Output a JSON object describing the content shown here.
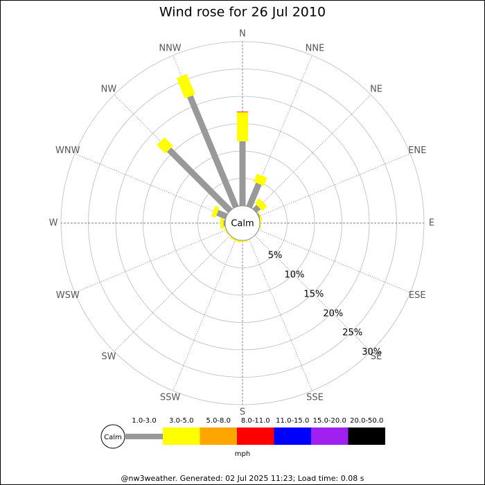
{
  "chart_data": {
    "type": "wind_rose",
    "title": "Wind rose for 26 Jul 2010",
    "directions": [
      "N",
      "NNE",
      "NE",
      "ENE",
      "E",
      "ESE",
      "SE",
      "SSE",
      "S",
      "SSW",
      "SW",
      "WSW",
      "W",
      "WNW",
      "NW",
      "NNW"
    ],
    "series": [
      {
        "name": "1.0-3.0",
        "color": "#999999",
        "values": [
          11.8,
          4.6,
          1.0,
          0.2,
          0,
          0,
          0,
          0,
          0,
          0,
          0,
          0,
          0.3,
          1.8,
          15.8,
          21.9
        ]
      },
      {
        "name": "3.0-5.0",
        "color": "#ffff00",
        "values": [
          5.3,
          1.6,
          1.2,
          0.2,
          0.2,
          0,
          0,
          0,
          0.2,
          0.3,
          0,
          0.2,
          0.6,
          0.8,
          2.2,
          4.0
        ]
      },
      {
        "name": "5.0-8.0",
        "color": "#ffa500",
        "values": [
          0,
          0,
          0,
          0,
          0,
          0,
          0,
          0,
          0,
          0,
          0,
          0,
          0,
          0,
          0,
          0
        ]
      },
      {
        "name": "8.0-11.0",
        "color": "#ff0000",
        "values": [
          0.1,
          0,
          0,
          0,
          0,
          0,
          0,
          0,
          0,
          0,
          0,
          0,
          0,
          0,
          0,
          0
        ]
      },
      {
        "name": "11.0-15.0",
        "color": "#0000ff",
        "values": [
          0,
          0,
          0,
          0,
          0,
          0,
          0,
          0,
          0,
          0,
          0,
          0,
          0,
          0,
          0,
          0
        ]
      },
      {
        "name": "15.0-20.0",
        "color": "#a020f0",
        "values": [
          0,
          0,
          0,
          0,
          0,
          0,
          0,
          0,
          0,
          0,
          0,
          0,
          0,
          0,
          0,
          0
        ]
      },
      {
        "name": "20.0-50.0",
        "color": "#000000",
        "values": [
          0,
          0,
          0,
          0,
          0,
          0,
          0,
          0,
          0,
          0,
          0,
          0,
          0,
          0,
          0,
          0
        ]
      }
    ],
    "rlim": [
      0,
      30
    ],
    "rticks": [
      {
        "value": 5,
        "label": "5%"
      },
      {
        "value": 10,
        "label": "10%"
      },
      {
        "value": 15,
        "label": "15%"
      },
      {
        "value": 20,
        "label": "20%"
      },
      {
        "value": 25,
        "label": "25%"
      },
      {
        "value": 30,
        "label": "30%"
      }
    ],
    "calm_label": "Calm",
    "unit_label": "mph",
    "footer": "@nw3weather. Generated: 02 Jul 2025 11:23; Load time: 0.08 s"
  }
}
